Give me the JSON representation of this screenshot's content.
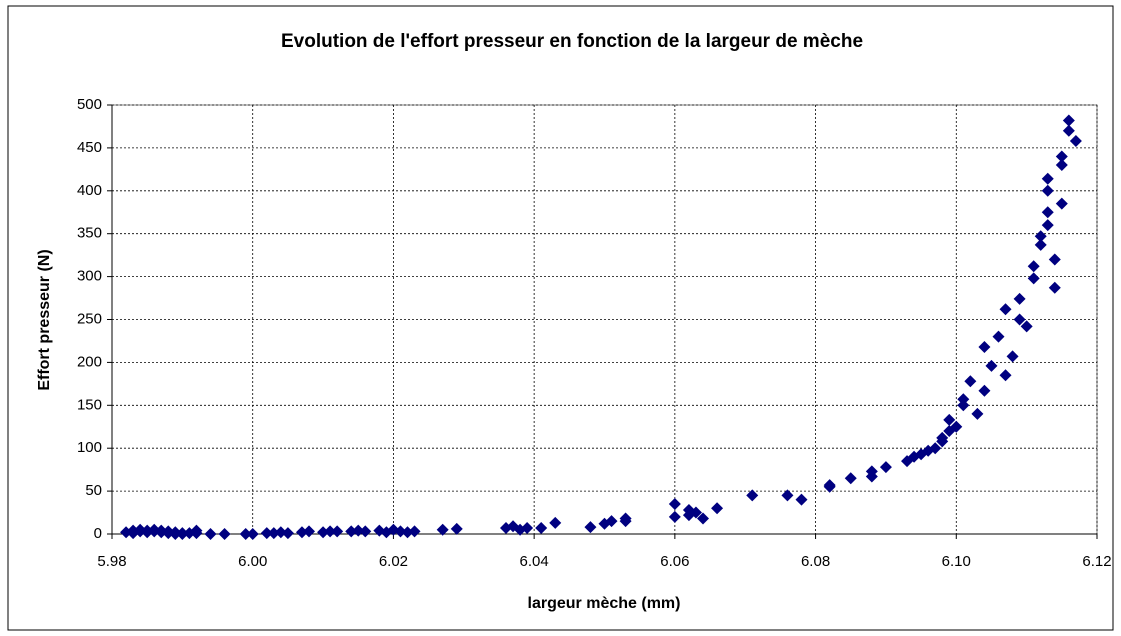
{
  "chart_data": {
    "type": "scatter",
    "title": "Evolution de l'effort presseur en fonction de la largeur de mèche",
    "x_label": "largeur mèche (mm)",
    "y_label": "Effort presseur  (N)",
    "color": "#000080",
    "grid": true,
    "xlim": [
      5.98,
      6.12
    ],
    "xticks": [
      5.98,
      {
        "value": 6,
        "label": "6.00"
      },
      6.02,
      6.04,
      6.06,
      6.08,
      {
        "value": 6.1,
        "label": "6.10"
      },
      6.12
    ],
    "ylim": [
      0,
      500
    ],
    "yticks": [
      0,
      50,
      100,
      150,
      200,
      250,
      300,
      350,
      400,
      450,
      500
    ],
    "x": [
      5.982,
      5.983,
      5.983,
      5.984,
      5.984,
      5.985,
      5.985,
      5.986,
      5.986,
      5.987,
      5.987,
      5.988,
      5.988,
      5.989,
      5.989,
      5.99,
      5.99,
      5.991,
      5.992,
      5.992,
      5.994,
      5.996,
      5.999,
      6.0,
      6.002,
      6.003,
      6.004,
      6.005,
      6.007,
      6.008,
      6.01,
      6.011,
      6.012,
      6.014,
      6.015,
      6.016,
      6.018,
      6.019,
      6.02,
      6.021,
      6.022,
      6.023,
      6.027,
      6.029,
      6.036,
      6.037,
      6.038,
      6.039,
      6.041,
      6.043,
      6.048,
      6.05,
      6.051,
      6.053,
      6.053,
      6.06,
      6.06,
      6.062,
      6.062,
      6.063,
      6.064,
      6.066,
      6.071,
      6.076,
      6.078,
      6.082,
      6.082,
      6.085,
      6.088,
      6.088,
      6.09,
      6.093,
      6.094,
      6.095,
      6.096,
      6.097,
      6.098,
      6.098,
      6.099,
      6.099,
      6.1,
      6.101,
      6.101,
      6.102,
      6.103,
      6.104,
      6.104,
      6.105,
      6.106,
      6.107,
      6.107,
      6.108,
      6.109,
      6.109,
      6.11,
      6.111,
      6.111,
      6.112,
      6.112,
      6.113,
      6.113,
      6.113,
      6.113,
      6.114,
      6.114,
      6.115,
      6.115,
      6.115,
      6.116,
      6.116,
      6.117
    ],
    "values": [
      2,
      4,
      1,
      3,
      5,
      2,
      4,
      3,
      5,
      2,
      4,
      3,
      1,
      2,
      0,
      1,
      0,
      1,
      4,
      1,
      0,
      0,
      0,
      0,
      1,
      1,
      2,
      1,
      2,
      3,
      2,
      3,
      3,
      3,
      4,
      3,
      4,
      2,
      5,
      3,
      2,
      3,
      5,
      6,
      7,
      9,
      5,
      7,
      7,
      13,
      8,
      12,
      15,
      18,
      15,
      35,
      20,
      28,
      22,
      25,
      18,
      30,
      45,
      45,
      40,
      55,
      57,
      65,
      67,
      73,
      78,
      85,
      90,
      93,
      97,
      100,
      108,
      112,
      120,
      133,
      125,
      157,
      150,
      178,
      140,
      218,
      167,
      196,
      230,
      185,
      262,
      207,
      250,
      274,
      242,
      298,
      312,
      337,
      347,
      360,
      375,
      400,
      414,
      320,
      287,
      385,
      430,
      440,
      470,
      482,
      458
    ]
  }
}
